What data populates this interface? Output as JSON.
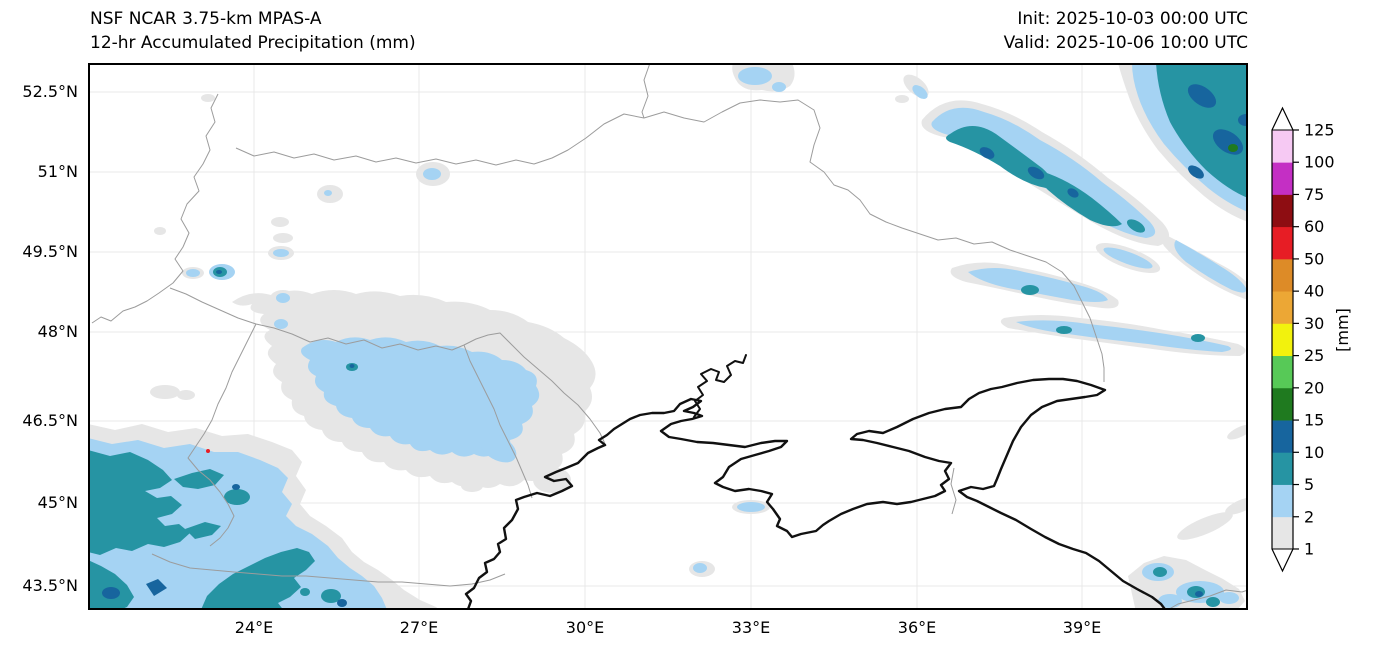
{
  "header": {
    "title_line1": "NSF NCAR 3.75-km MPAS-A",
    "title_line2": "12-hr Accumulated Precipitation (mm)",
    "init_label": "Init: 2025-10-03 00:00 UTC",
    "valid_label": "Valid: 2025-10-06 10:00 UTC"
  },
  "map": {
    "y_ticks": [
      "52.5°N",
      "51°N",
      "49.5°N",
      "48°N",
      "46.5°N",
      "45°N",
      "43.5°N"
    ],
    "x_ticks": [
      "24°E",
      "27°E",
      "30°E",
      "33°E",
      "36°E",
      "39°E"
    ]
  },
  "colorbar": {
    "unit": "[mm]",
    "tick_labels_top_to_bottom": [
      "125",
      "100",
      "75",
      "60",
      "50",
      "40",
      "30",
      "25",
      "20",
      "15",
      "10",
      "5",
      "2",
      "1"
    ],
    "band_colors_bottom_to_top": [
      "#e6e6e6",
      "#a5d3f3",
      "#2694a3",
      "#17659e",
      "#1f7a1f",
      "#57c957",
      "#f2f20d",
      "#eca735",
      "#dd8b27",
      "#e71d25",
      "#8e0d12",
      "#c42fc4",
      "#f6c9f3"
    ],
    "under_color": "#ffffff",
    "over_color": "#ffffff"
  },
  "chart_data": {
    "type": "heatmap",
    "subtype": "filled-contour precipitation map over geographic region (Ukraine, Black Sea, Romania, Sea of Azov, Caucasus)",
    "title": "NSF NCAR 3.75-km MPAS-A",
    "subtitle": "12-hr Accumulated Precipitation (mm)",
    "init_time": "2025-10-03 00:00 UTC",
    "valid_time": "2025-10-06 10:00 UTC",
    "unit": "mm",
    "lon_ticks_deg_e": [
      24,
      27,
      30,
      33,
      36,
      39
    ],
    "lat_ticks_deg_n": [
      52.5,
      51,
      49.5,
      48,
      46.5,
      45,
      43.5
    ],
    "lon_range_deg_e": [
      21,
      42
    ],
    "lat_range_deg_n": [
      43.1,
      53.0
    ],
    "levels_mm": [
      1,
      2,
      5,
      10,
      15,
      20,
      25,
      30,
      40,
      50,
      60,
      75,
      100,
      125
    ],
    "band_colors": [
      "#e6e6e6",
      "#a5d3f3",
      "#2694a3",
      "#17659e",
      "#1f7a1f",
      "#57c957",
      "#f2f20d",
      "#eca735",
      "#dd8b27",
      "#e71d25",
      "#8e0d12",
      "#c42fc4",
      "#f6c9f3"
    ],
    "grid": true,
    "legend_position": "right colorbar with pointed over/under arrows",
    "regions": [
      {
        "area": "far northeast corner, ~41-42°E 52-53°N",
        "description": "dense rain mass",
        "peak_mm": "15-20"
      },
      {
        "area": "northeast diagonal NW-SE bands, ~36-41°E 50.5-53°N",
        "description": "elongated streaks of 2-10 mm with 10-15 mm cores",
        "peak_mm": "10-15"
      },
      {
        "area": "east-central light streaks, ~37-42°E 48.5-49.5°N",
        "description": "thin 1-5 mm bands",
        "peak_mm": "2-5"
      },
      {
        "area": "Carpathians / Romania-Moldova, ~24.5-29.5°E 46-48.5°N",
        "description": "broad 2-5 mm area ringed by 1-2 mm",
        "peak_mm": "5-10 isolated"
      },
      {
        "area": "southwest corner Balkans, ~21-27°E 43-45.7°N",
        "description": "large 2-5 mm area with many 5-10 mm blobs and 10-15 mm spots",
        "peak_mm": "10-15"
      },
      {
        "area": "Caucasus coast near Sochi, ~39.5-41.5°E 43-43.8°N",
        "description": "small 2-10 mm cells",
        "peak_mm": "5-10"
      },
      {
        "area": "scattered specks near 23.5°E 49.3°N, 32°E 52.9°N, 28.3°E 51°N",
        "description": "isolated 1-5 mm dots",
        "peak_mm": "2-5"
      }
    ]
  }
}
